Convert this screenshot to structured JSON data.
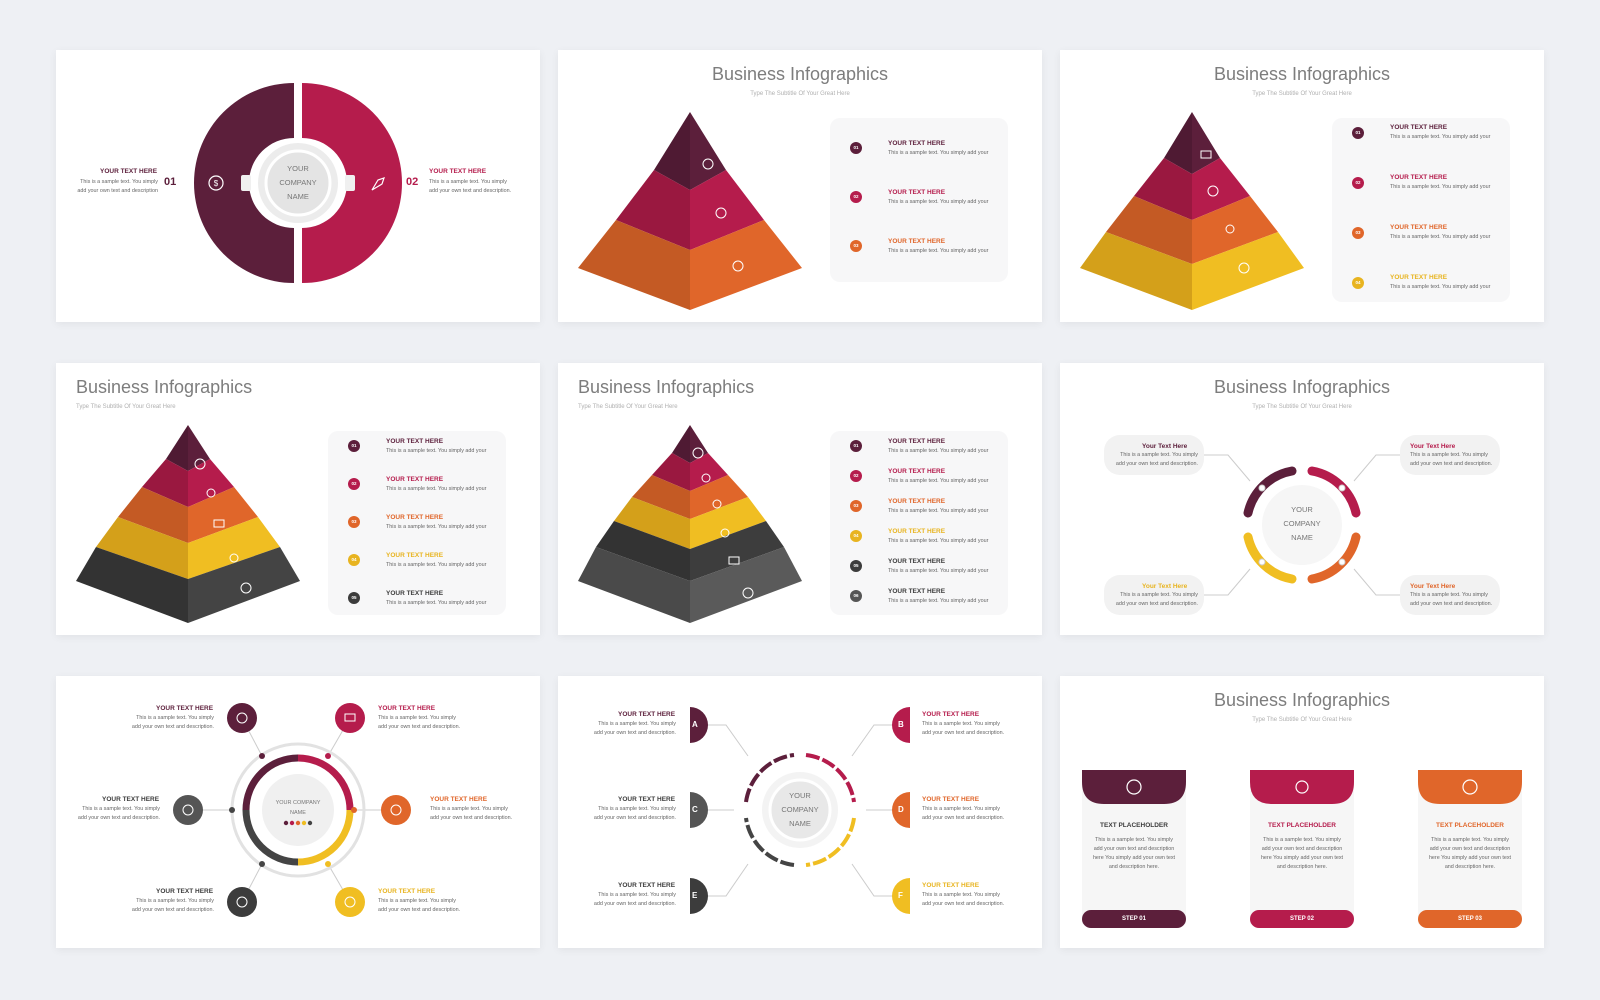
{
  "colors": {
    "maroon": "#5c1f3b",
    "crimson": "#b51c4c",
    "orange": "#e0662a",
    "gold": "#e8b420",
    "dark": "#3c3c3c",
    "gray": "#555555"
  },
  "common": {
    "title": "Business Infographics",
    "subtitle": "Type The Subtitle Of Your Great Here",
    "head_upper": "YOUR TEXT HERE",
    "head_mixed": "Your Text Here",
    "body_short": "This is a sample text. You simply add your",
    "body_long": "This is a sample text. You simply add your own text and description.",
    "company": [
      "YOUR",
      "COMPANY",
      "NAME"
    ],
    "company_small": "YOUR COMPANY NAME"
  },
  "slide1": {
    "n1": "01",
    "n2": "02",
    "h1": "YOUR TEXT HERE",
    "h2": "YOUR TEXT HERE",
    "b1": "This is a sample text. You simply add your own text and description",
    "b2": "This is a sample text. You simply add your own text and description."
  },
  "pyr_numbers": [
    "01",
    "02",
    "03",
    "04",
    "05",
    "06"
  ],
  "slide8": {
    "letters": [
      "A",
      "B",
      "C",
      "D",
      "E",
      "F"
    ]
  },
  "slide9": {
    "cards": [
      {
        "title": "TEXT PLACEHOLDER",
        "body": "This is a sample text. You simply add your own text and description here You simply add your own text and description here.",
        "step": "STEP 01",
        "icon": "dollar-icon"
      },
      {
        "title": "TEXT PLACEHOLDER",
        "body": "This is a sample text. You simply add your own text and description here You simply add your own text and description here.",
        "step": "STEP 02",
        "icon": "rocket-icon"
      },
      {
        "title": "TEXT PLACEHOLDER",
        "body": "This is a sample text. You simply add your own text and description here You simply add your own text and description here.",
        "step": "STEP 03",
        "icon": "gear-icon"
      }
    ]
  }
}
